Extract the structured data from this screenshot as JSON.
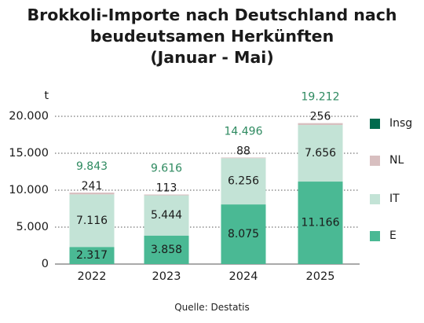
{
  "title_lines": [
    "Brokkoli-Importe nach Deutschland nach",
    "beudeutsamen Herkünften",
    "(Januar - Mai)"
  ],
  "source": "Quelle: Destatis",
  "colors": {
    "E": "#4ab994",
    "IT": "#c3e3d6",
    "NL": "#d8bfc0",
    "Insg": "#006b4e",
    "total_label": "#2e8a60"
  },
  "chart_data": {
    "type": "bar",
    "stacked": true,
    "title": "Brokkoli-Importe nach Deutschland nach beudeutsamen Herkünften (Januar - Mai)",
    "unit_label": "t",
    "categories": [
      "2022",
      "2023",
      "2024",
      "2025"
    ],
    "series": [
      {
        "name": "E",
        "values": [
          2317,
          3858,
          8075,
          11166
        ],
        "labels": [
          "2.317",
          "3.858",
          "8.075",
          "11.166"
        ]
      },
      {
        "name": "IT",
        "values": [
          7116,
          5444,
          6256,
          7656
        ],
        "labels": [
          "7.116",
          "5.444",
          "6.256",
          "7.656"
        ]
      },
      {
        "name": "NL",
        "values": [
          241,
          113,
          88,
          256
        ],
        "labels": [
          "241",
          "113",
          "88",
          "256"
        ]
      }
    ],
    "totals": {
      "name": "Insg",
      "values": [
        9843,
        9616,
        14496,
        19212
      ],
      "labels": [
        "9.843",
        "9.616",
        "14.496",
        "19.212"
      ]
    },
    "ylim": [
      0,
      20000
    ],
    "yticks": [
      0,
      5000,
      10000,
      15000,
      20000
    ],
    "ytick_labels": [
      "0",
      "5.000",
      "10.000",
      "15.000",
      "20.000"
    ],
    "grid": true,
    "legend": {
      "position": "right",
      "entries": [
        "Insg",
        "NL",
        "IT",
        "E"
      ]
    }
  }
}
